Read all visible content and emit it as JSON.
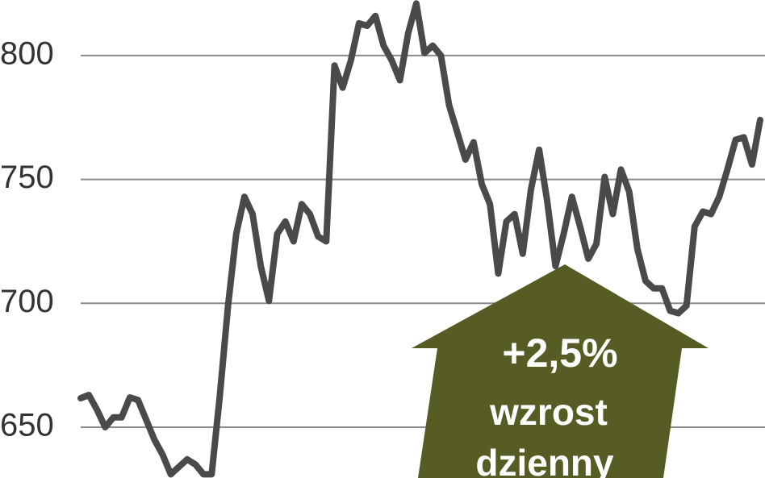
{
  "chart_data": {
    "type": "line",
    "values": [
      661.7,
      663,
      657,
      650,
      654,
      654,
      662,
      661,
      653,
      645,
      639,
      631,
      634,
      637,
      635,
      631,
      631,
      663,
      699,
      728,
      743,
      736,
      715,
      701,
      728,
      733,
      725,
      740,
      736,
      727,
      725,
      796,
      787,
      798,
      813,
      812,
      816,
      804,
      798,
      790,
      809,
      821,
      801,
      804,
      800,
      780,
      769,
      758,
      765,
      748,
      740,
      712,
      733,
      736,
      720,
      746,
      762,
      741,
      715,
      728,
      743,
      731,
      718,
      724,
      751,
      736,
      754,
      745,
      722,
      709,
      706,
      706,
      697,
      696,
      699,
      731,
      737,
      736,
      743,
      754,
      766,
      767,
      756,
      774
    ],
    "color": "#4a4a4a",
    "ylim": [
      629.5,
      822.4
    ],
    "yticks": [
      650,
      700,
      750,
      800
    ],
    "grid": true,
    "annotation": {
      "value": "+2,5%",
      "lines": [
        "wzrost",
        "dzienny"
      ],
      "color": "#575c24"
    }
  }
}
